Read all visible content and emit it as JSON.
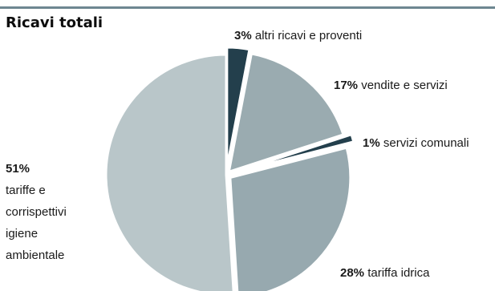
{
  "chart_data": {
    "type": "pie",
    "title": "Ricavi totali",
    "slices": [
      {
        "label": "altri ricavi e proventi",
        "pct_text": "3%",
        "value": 3,
        "color": "#233f4c"
      },
      {
        "label": "vendite e servizi",
        "pct_text": "17%",
        "value": 17,
        "color": "#9aabb0"
      },
      {
        "label": "servizi comunali",
        "pct_text": "1%",
        "value": 1,
        "color": "#233f4c"
      },
      {
        "label": "tariffa idrica",
        "pct_text": "28%",
        "value": 28,
        "color": "#97a9af"
      },
      {
        "label": "tariffe e corrispettivi igiene ambientale",
        "label_lines": [
          "tariffe e",
          "corrispettivi",
          "igiene",
          "ambientale"
        ],
        "pct_text": "51%",
        "value": 51,
        "color": "#b9c6c9"
      }
    ],
    "legend": "none",
    "colors": {
      "rule": "#6e8791",
      "dark": "#233f4c"
    }
  }
}
